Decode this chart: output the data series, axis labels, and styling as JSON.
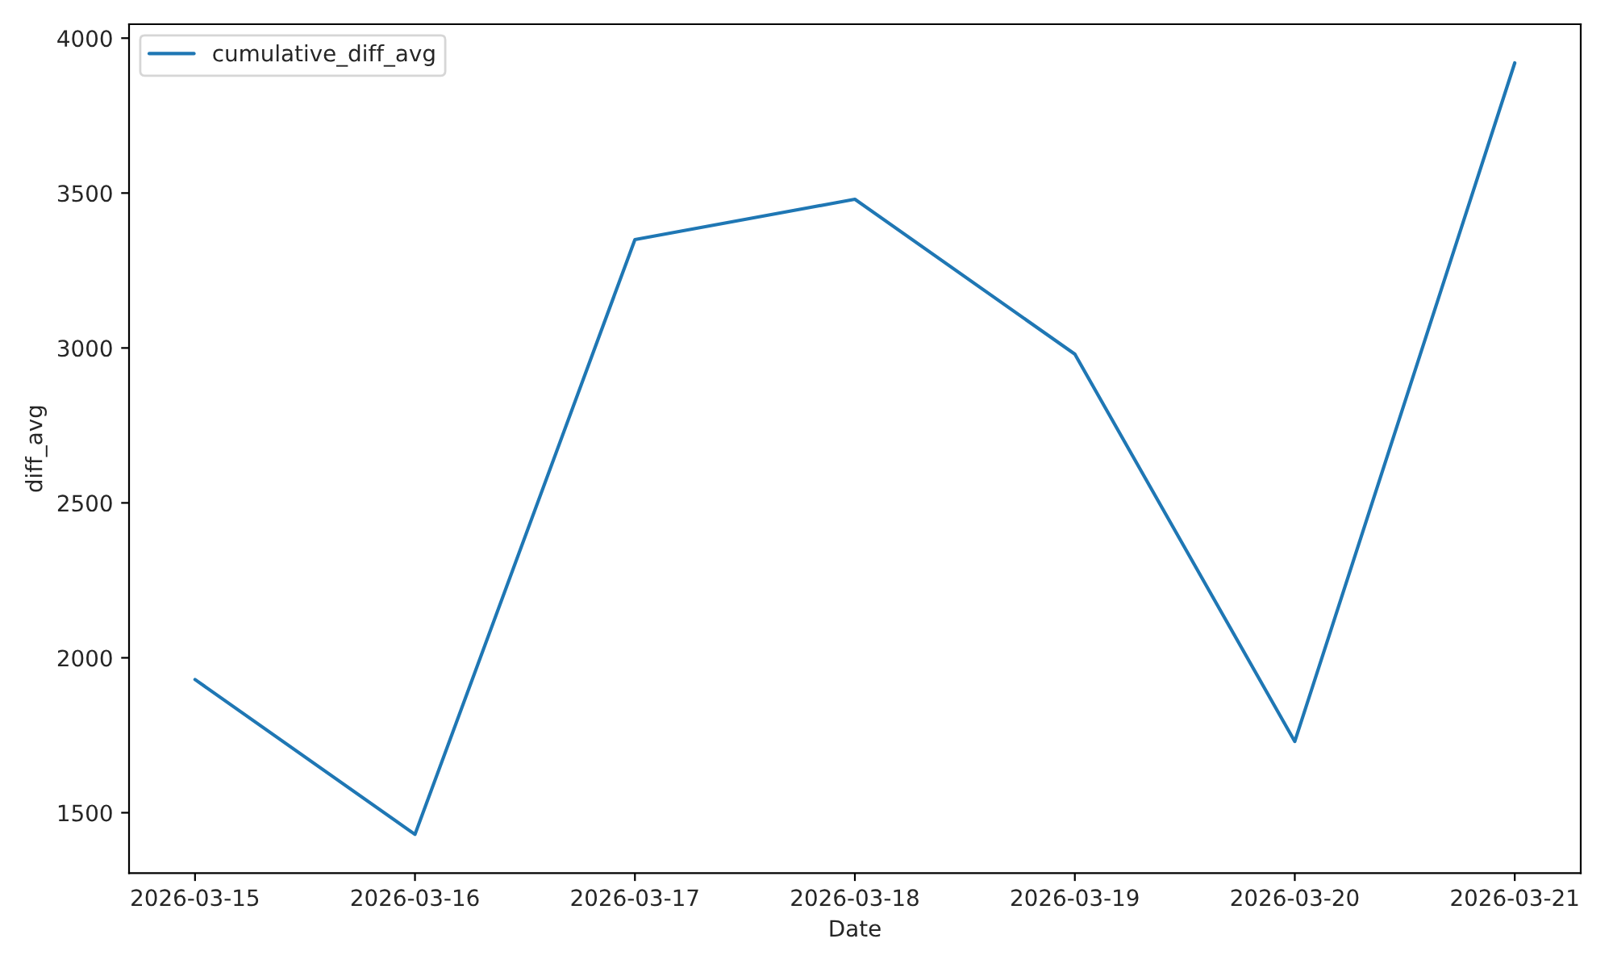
{
  "chart_data": {
    "type": "line",
    "xlabel": "Date",
    "ylabel": "diff_avg",
    "x": [
      "2026-03-15",
      "2026-03-16",
      "2026-03-17",
      "2026-03-18",
      "2026-03-19",
      "2026-03-20",
      "2026-03-21"
    ],
    "series": [
      {
        "name": "cumulative_diff_avg",
        "color": "#1f77b4",
        "values": [
          1930,
          1430,
          3350,
          3480,
          2980,
          1730,
          3920
        ]
      }
    ],
    "xlim": [
      "2026-03-14T16:48",
      "2026-03-21T07:12"
    ],
    "xticks": [
      "2026-03-15",
      "2026-03-16",
      "2026-03-17",
      "2026-03-18",
      "2026-03-19",
      "2026-03-20",
      "2026-03-21"
    ],
    "ylim": [
      1305,
      4045
    ],
    "yticks": [
      1500,
      2000,
      2500,
      3000,
      3500,
      4000
    ],
    "grid": false,
    "legend": "top left",
    "marker": "none",
    "line_style": "solid"
  }
}
